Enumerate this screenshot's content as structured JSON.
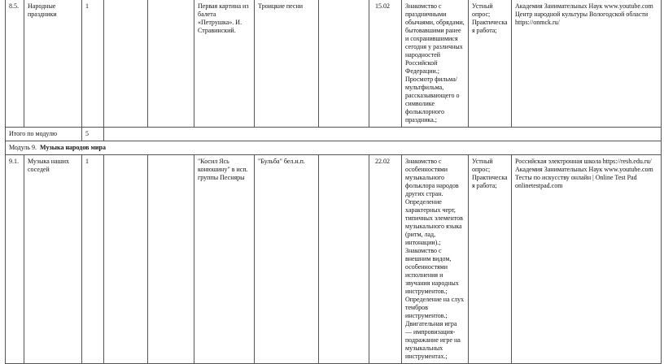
{
  "rows": [
    {
      "num": "8.5.",
      "topic": "Народные праздники",
      "hours": "1",
      "col4": "",
      "col5": "",
      "listening": "Первая картина из балета «Петрушка». И. Стравинский.",
      "singing": "Троицкие песни",
      "col8": "",
      "date": "15.02",
      "activities": "Знакомство с праздничными обычаями, обрядами, бытовавшими ранее и сохранившимися сегодня у различных народностей Российской Федерации.; Просмотр фильма/ мультфильма, рассказывающего о символике фольклорного праздника.;",
      "control": "Устный опрос; Практическая работа;",
      "resources": [
        "Академия Занимательных Наук www.youtube.com",
        "Центр народной культуры Вологодской области https://onmck.ru/"
      ]
    },
    {
      "num": "9.1.",
      "topic": "Музыка наших соседей",
      "hours": "1",
      "col4": "",
      "col5": "",
      "listening": "\"Косил Ясь конюшину\" в исп. группы Песняры",
      "singing": "\"Бульба\" бел.н.п.",
      "col8": "",
      "date": "22.02",
      "activities": "Знакомство с особенностями музыкального фольклора народов других стран. Определение характерных черт, типичных элементов музыкального языка (ритм, лад, интонации).; Знакомство с внешним видом, особенностями исполнения и звучания народных инструментов.; Определение на слух тембров инструментов.; Двигательная игра — импровизация-подражание игре на музыкальных инструментах.;",
      "control": "Устный опрос; Практическая работа;",
      "resources": [
        "Российская электронная школа https://resh.edu.ru/",
        "Академия Занимательных Наук www.youtube.com",
        "Тесты по искусству онлайн | Online Test Pad onlinetestpad.com"
      ]
    }
  ],
  "module_total": {
    "label": "Итого по модулю",
    "hours": "5"
  },
  "module_header": {
    "prefix": "Модуль 9.",
    "title": "Музыка народов мира"
  }
}
